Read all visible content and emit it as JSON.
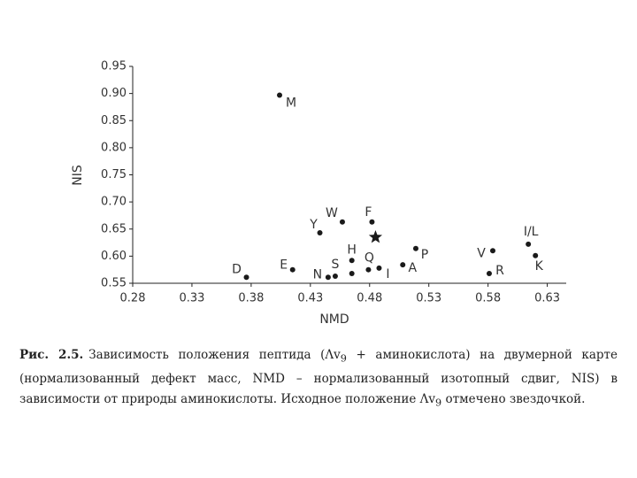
{
  "chart_data": {
    "type": "scatter",
    "x_label": "NMD",
    "y_label": "NIS",
    "x": [
      0.404,
      0.438,
      0.457,
      0.482,
      0.519,
      0.465,
      0.479,
      0.488,
      0.508,
      0.451,
      0.445,
      0.465,
      0.415,
      0.376,
      0.584,
      0.581,
      0.614,
      0.62
    ],
    "values": [
      0.897,
      0.643,
      0.663,
      0.663,
      0.614,
      0.592,
      0.575,
      0.578,
      0.584,
      0.563,
      0.561,
      0.568,
      0.575,
      0.561,
      0.61,
      0.568,
      0.622,
      0.601
    ],
    "labels": [
      "M",
      "Y",
      "W",
      "F",
      "P",
      "H",
      "Q",
      "I",
      "A",
      "S",
      "N",
      null,
      "E",
      "D",
      "V",
      "R",
      "I/L",
      "K"
    ],
    "color": "#1a1a1a",
    "star": {
      "x": 0.485,
      "y": 0.635
    },
    "xlim": [
      0.28,
      0.646
    ],
    "ylim": [
      0.55,
      0.95
    ],
    "xticks": [
      0.28,
      0.33,
      0.38,
      0.43,
      0.48,
      0.53,
      0.58,
      0.63
    ],
    "yticks": [
      0.55,
      {
        "value": 0.6,
        "label": "0.60"
      },
      0.65,
      {
        "value": 0.7,
        "label": "0.70"
      },
      0.75,
      {
        "value": 0.8,
        "label": "0.80"
      },
      0.85,
      {
        "value": 0.9,
        "label": "0.90"
      },
      0.95
    ],
    "caption": {
      "label": "Рис. 2.5.",
      "parts": [
        "Зависимость положения пептида (Λv",
        "9",
        " + аминокислота) на двумерной карте (нормализованный дефект масс, NMD – нормализованный изотопный сдвиг, NIS) в зависимости от природы аминокислоты. Исходное положение Λv",
        "9",
        " отмечено звездочкой."
      ]
    }
  }
}
